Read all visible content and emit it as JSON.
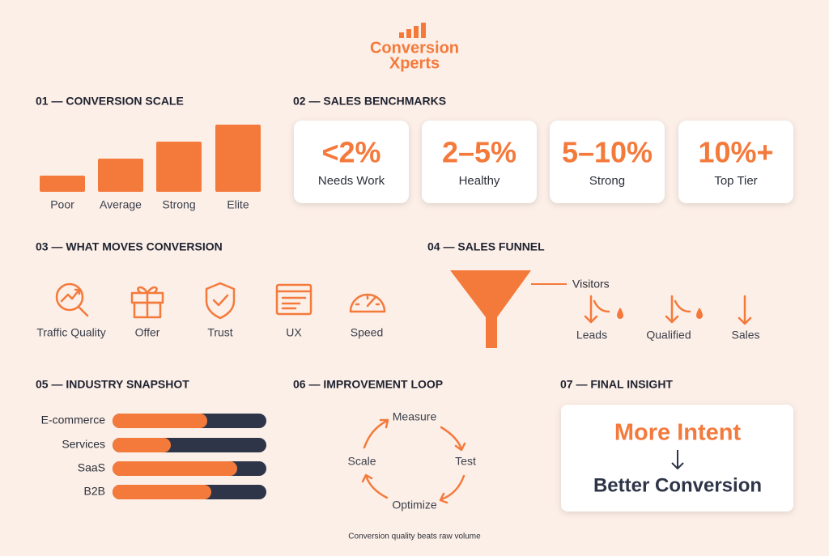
{
  "logo": {
    "line1": "Conversion",
    "line2": "Xperts"
  },
  "scale": {
    "title": "01 — CONVERSION SCALE",
    "labels": [
      "Poor",
      "Average",
      "Strong",
      "Elite"
    ]
  },
  "benchmarks": {
    "title": "02 — SALES BENCHMARKS",
    "cards": [
      {
        "value": "<2%",
        "label": "Needs Work"
      },
      {
        "value": "2–5%",
        "label": "Healthy"
      },
      {
        "value": "5–10%",
        "label": "Strong"
      },
      {
        "value": "10%+",
        "label": "Top Tier"
      }
    ]
  },
  "drivers": {
    "title": "03 — WHAT MOVES CONVERSION",
    "items": [
      "Traffic Quality",
      "Offer",
      "Trust",
      "UX",
      "Speed"
    ]
  },
  "funnel": {
    "title": "04 — SALES FUNNEL",
    "stages": [
      "Visitors",
      "Leads",
      "Qualified",
      "Sales"
    ]
  },
  "industry": {
    "title": "05 — INDUSTRY SNAPSHOT",
    "rows": [
      "E-commerce",
      "Services",
      "SaaS",
      "B2B"
    ]
  },
  "loop": {
    "title": "06 — IMPROVEMENT LOOP",
    "steps": [
      "Measure",
      "Test",
      "Optimize",
      "Scale"
    ]
  },
  "insight": {
    "title": "07 — FINAL INSIGHT",
    "line1": "More Intent",
    "line2": "Better Conversion"
  },
  "footer": "Conversion quality beats raw volume"
}
